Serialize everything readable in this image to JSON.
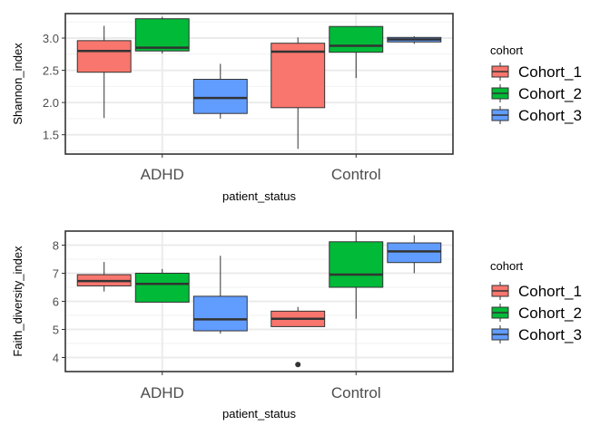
{
  "chart_data": [
    {
      "type": "box",
      "xlabel": "patient_status",
      "ylabel": "Shannon_index",
      "categories": [
        "ADHD",
        "Control"
      ],
      "ylim": [
        1.2,
        3.38
      ],
      "yticks": [
        1.5,
        2.0,
        2.5,
        3.0
      ],
      "ytick_labels": [
        "1.5",
        "2.0",
        "2.5",
        "3.0"
      ],
      "grid": true,
      "legend": {
        "title": "cohort",
        "position": "right"
      },
      "series": [
        {
          "name": "Cohort_1",
          "color": "#F8766D",
          "boxes": [
            {
              "min": 1.76,
              "q1": 2.47,
              "median": 2.8,
              "q3": 2.96,
              "max": 3.19,
              "outliers": []
            },
            {
              "min": 1.28,
              "q1": 1.92,
              "median": 2.79,
              "q3": 2.92,
              "max": 3.01,
              "outliers": []
            }
          ]
        },
        {
          "name": "Cohort_2",
          "color": "#00BA38",
          "boxes": [
            {
              "min": 2.76,
              "q1": 2.8,
              "median": 2.85,
              "q3": 3.3,
              "max": 3.33,
              "outliers": []
            },
            {
              "min": 2.38,
              "q1": 2.78,
              "median": 2.88,
              "q3": 3.18,
              "max": 3.18,
              "outliers": []
            }
          ]
        },
        {
          "name": "Cohort_3",
          "color": "#619CFF",
          "boxes": [
            {
              "min": 1.75,
              "q1": 1.83,
              "median": 2.07,
              "q3": 2.36,
              "max": 2.6,
              "outliers": []
            },
            {
              "min": 2.91,
              "q1": 2.94,
              "median": 2.98,
              "q3": 3.01,
              "max": 3.03,
              "outliers": []
            }
          ]
        }
      ]
    },
    {
      "type": "box",
      "xlabel": "patient_status",
      "ylabel": "Faith_diversity_index",
      "categories": [
        "ADHD",
        "Control"
      ],
      "ylim": [
        3.5,
        8.5
      ],
      "yticks": [
        4,
        5,
        6,
        7,
        8
      ],
      "ytick_labels": [
        "4",
        "5",
        "6",
        "7",
        "8"
      ],
      "grid": true,
      "legend": {
        "title": "cohort",
        "position": "right"
      },
      "series": [
        {
          "name": "Cohort_1",
          "color": "#F8766D",
          "boxes": [
            {
              "min": 6.35,
              "q1": 6.55,
              "median": 6.72,
              "q3": 6.95,
              "max": 7.4,
              "outliers": []
            },
            {
              "min": 5.1,
              "q1": 5.1,
              "median": 5.38,
              "q3": 5.65,
              "max": 5.8,
              "outliers": [
                3.75
              ]
            }
          ]
        },
        {
          "name": "Cohort_2",
          "color": "#00BA38",
          "boxes": [
            {
              "min": 5.95,
              "q1": 5.97,
              "median": 6.62,
              "q3": 7.0,
              "max": 7.15,
              "outliers": []
            },
            {
              "min": 5.38,
              "q1": 6.5,
              "median": 6.95,
              "q3": 8.12,
              "max": 8.5,
              "outliers": []
            }
          ]
        },
        {
          "name": "Cohort_3",
          "color": "#619CFF",
          "boxes": [
            {
              "min": 4.85,
              "q1": 4.95,
              "median": 5.36,
              "q3": 6.18,
              "max": 7.62,
              "outliers": []
            },
            {
              "min": 7.0,
              "q1": 7.38,
              "median": 7.78,
              "q3": 8.08,
              "max": 8.35,
              "outliers": []
            }
          ]
        }
      ]
    }
  ]
}
